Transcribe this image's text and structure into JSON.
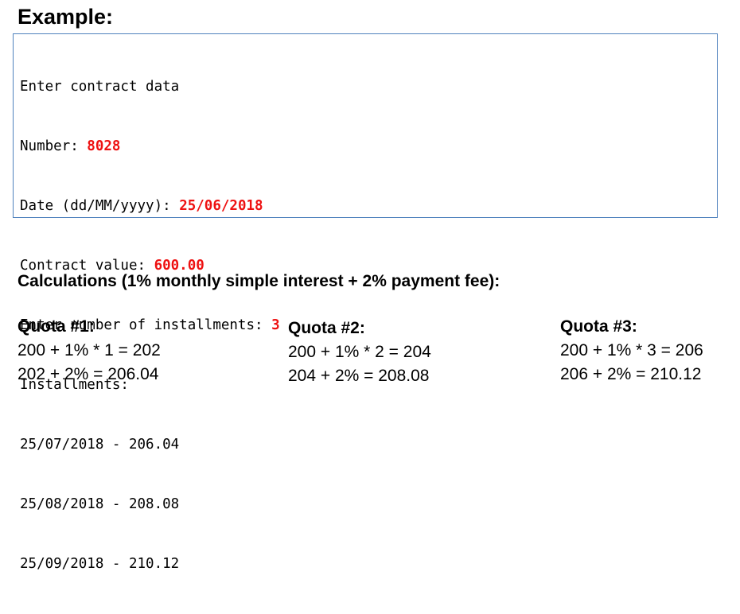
{
  "heading": "Example:",
  "console": {
    "lines": [
      {
        "label": "Enter contract data",
        "input": ""
      },
      {
        "label": "Number: ",
        "input": "8028"
      },
      {
        "label": "Date (dd/MM/yyyy): ",
        "input": "25/06/2018"
      },
      {
        "label": "Contract value: ",
        "input": "600.00"
      },
      {
        "label": "Enter number of installments: ",
        "input": "3"
      },
      {
        "label": "Installments:",
        "input": ""
      },
      {
        "label": "25/07/2018 - 206.04",
        "input": ""
      },
      {
        "label": "25/08/2018 - 208.08",
        "input": ""
      },
      {
        "label": "25/09/2018 - 210.12",
        "input": ""
      }
    ]
  },
  "calculations": {
    "title": "Calculations (1% monthly simple interest + 2% payment fee):",
    "quotas": [
      {
        "title": "Quota #1:",
        "line1": "200 + 1% * 1 = 202",
        "line2": "202 + 2% = 206.04"
      },
      {
        "title": "Quota #2:",
        "line1": "200 + 1% * 2 = 204",
        "line2": "204 + 2% = 208.08"
      },
      {
        "title": "Quota #3:",
        "line1": "200 + 1% * 3 = 206",
        "line2": "206 + 2% = 210.12"
      }
    ]
  },
  "colors": {
    "input_text": "#ee1111",
    "box_border": "#4f81bd"
  }
}
